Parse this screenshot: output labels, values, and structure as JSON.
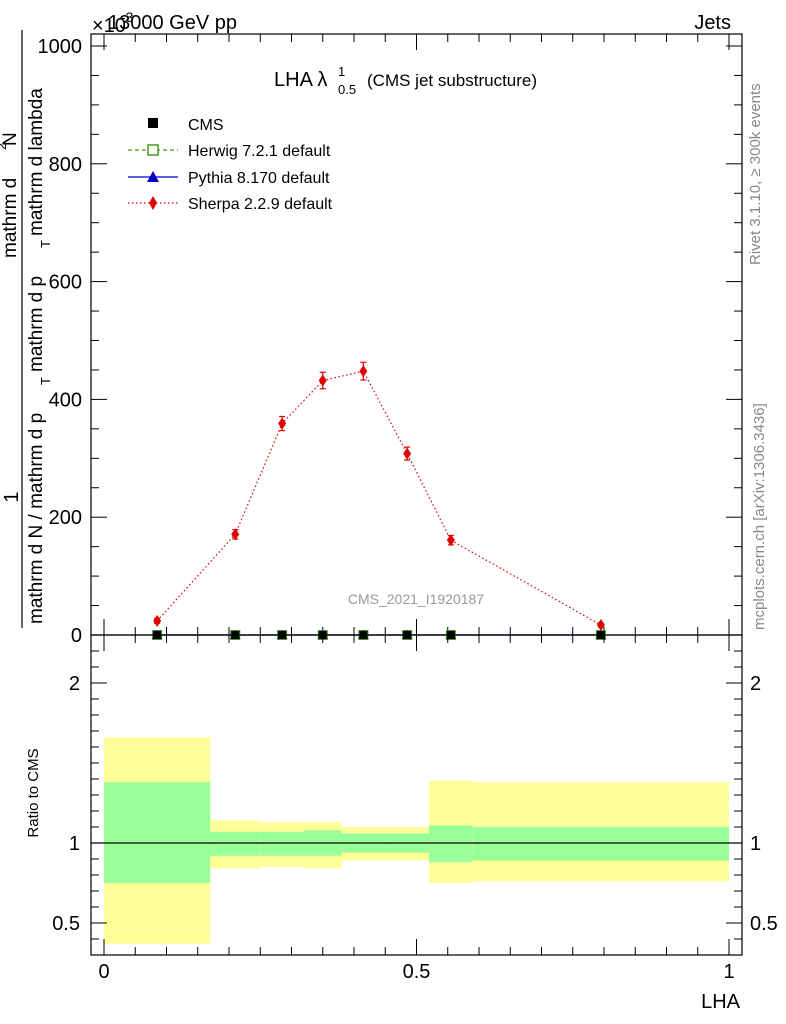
{
  "header": {
    "left": "13000 GeV pp",
    "right": "Jets",
    "exponent": "×10",
    "exponent_power": "-3"
  },
  "side_labels": {
    "rivet": "Rivet 3.1.10, ≥ 300k events",
    "mcplots": "mcplots.cern.ch [arXiv:1306.3436]"
  },
  "watermark": "CMS_2021_I1920187",
  "chart_data": [
    {
      "type": "line",
      "title": "LHA λ",
      "title_sup": "1",
      "title_sub": "0.5",
      "title_note": "(CMS jet substructure)",
      "ylabel": {
        "prefix": "1",
        "denominator": "mathrm d N / mathrm d p",
        "denominator_sub": "T",
        "numerator_top": "mathrm d",
        "numerator_sup": "2",
        "numerator_end": "N",
        "numerator_bottom": "mathrm d p",
        "numerator_bottom_sub": "T",
        "numerator_bottom_end": "mathrm d lambda"
      },
      "xlim": [
        0,
        1
      ],
      "ylim": [
        0,
        1000
      ],
      "yticks": [
        "0",
        "200",
        "400",
        "600",
        "800",
        "1000"
      ],
      "legend_position": "top-left",
      "series": [
        {
          "name": "CMS",
          "color": "#000000",
          "marker": "filled-square",
          "x": [
            0.085,
            0.21,
            0.285,
            0.35,
            0.415,
            0.485,
            0.555,
            0.795
          ],
          "y": [
            0,
            0,
            0,
            0,
            0,
            0,
            0,
            0
          ]
        },
        {
          "name": "Herwig 7.2.1 default",
          "color": "#4a9c1a",
          "marker": "open-square",
          "line": "dashed",
          "x": [
            0.085,
            0.21,
            0.285,
            0.35,
            0.415,
            0.485,
            0.555,
            0.795
          ],
          "y": [
            0,
            0,
            0,
            0,
            0,
            0,
            0,
            0
          ]
        },
        {
          "name": "Pythia 8.170 default",
          "color": "#0000cc",
          "marker": "filled-triangle",
          "line": "solid",
          "x": [
            0.085,
            0.21,
            0.285,
            0.35,
            0.415,
            0.485,
            0.555,
            0.795
          ],
          "y": [
            0,
            0,
            0,
            0,
            0,
            0,
            0,
            0
          ]
        },
        {
          "name": "Sherpa 2.2.9 default",
          "color": "#e00000",
          "marker": "filled-diamond",
          "line": "dotted",
          "x": [
            0.085,
            0.21,
            0.285,
            0.35,
            0.415,
            0.485,
            0.555,
            0.795
          ],
          "y": [
            24,
            171,
            359,
            432,
            448,
            308,
            161,
            17
          ],
          "yerr": [
            4,
            8,
            12,
            14,
            15,
            11,
            8,
            3
          ]
        }
      ]
    },
    {
      "type": "area",
      "ylabel": "Ratio to CMS",
      "xlabel": "LHA",
      "xlim": [
        0,
        1
      ],
      "ylim": [
        0.3,
        2.3
      ],
      "yticks": [
        "0.5",
        "1",
        "2"
      ],
      "xticks": [
        "0",
        "0.5",
        "1"
      ],
      "reference_line": 1,
      "bins": [
        {
          "lo": 0.0,
          "hi": 0.17,
          "inner": [
            0.75,
            1.38
          ],
          "outer": [
            0.37,
            1.66
          ]
        },
        {
          "lo": 0.17,
          "hi": 0.25,
          "inner": [
            0.92,
            1.07
          ],
          "outer": [
            0.84,
            1.14
          ]
        },
        {
          "lo": 0.25,
          "hi": 0.32,
          "inner": [
            0.92,
            1.07
          ],
          "outer": [
            0.85,
            1.13
          ]
        },
        {
          "lo": 0.32,
          "hi": 0.38,
          "inner": [
            0.92,
            1.08
          ],
          "outer": [
            0.84,
            1.13
          ]
        },
        {
          "lo": 0.38,
          "hi": 0.45,
          "inner": [
            0.94,
            1.06
          ],
          "outer": [
            0.89,
            1.1
          ]
        },
        {
          "lo": 0.45,
          "hi": 0.52,
          "inner": [
            0.94,
            1.06
          ],
          "outer": [
            0.89,
            1.1
          ]
        },
        {
          "lo": 0.52,
          "hi": 0.59,
          "inner": [
            0.88,
            1.11
          ],
          "outer": [
            0.75,
            1.39
          ]
        },
        {
          "lo": 0.59,
          "hi": 1.0,
          "inner": [
            0.89,
            1.1
          ],
          "outer": [
            0.76,
            1.38
          ]
        }
      ]
    }
  ]
}
